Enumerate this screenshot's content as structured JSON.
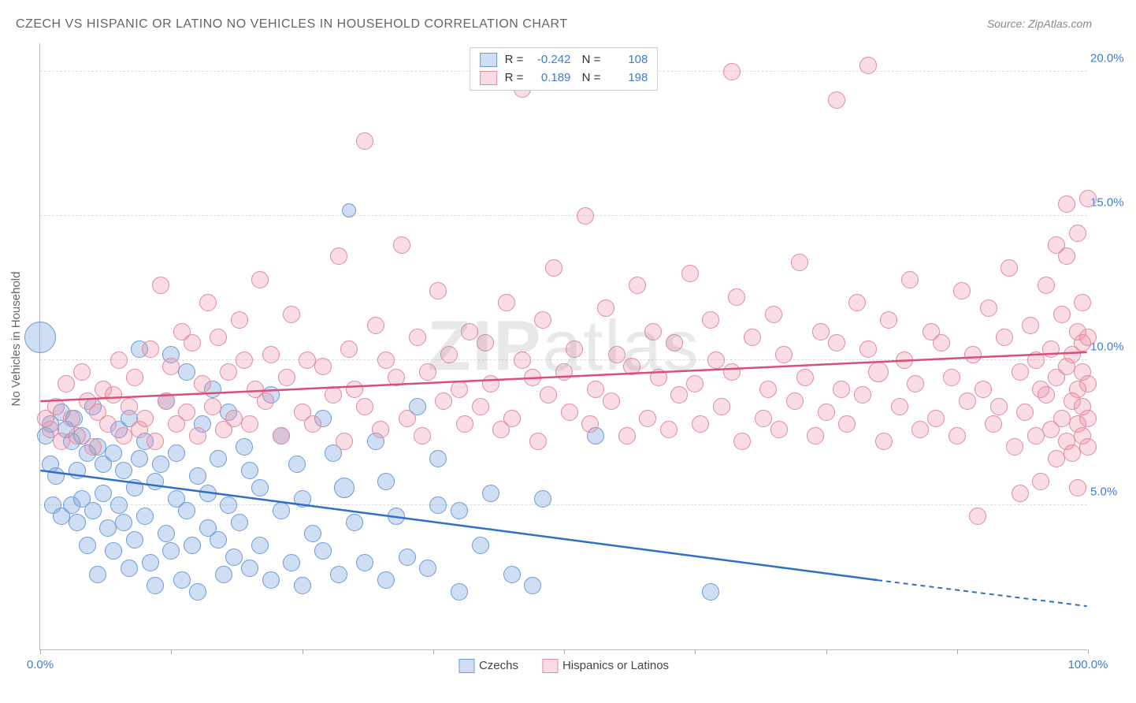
{
  "title": "CZECH VS HISPANIC OR LATINO NO VEHICLES IN HOUSEHOLD CORRELATION CHART",
  "source_label": "Source: ZipAtlas.com",
  "ylabel": "No Vehicles in Household",
  "watermark_prefix": "ZIP",
  "watermark_suffix": "atlas",
  "chart": {
    "type": "scatter",
    "background_color": "#ffffff",
    "grid_color": "#dddddd",
    "axis_color": "#bbbbbb",
    "tick_label_color": "#3b7dd8",
    "tick_fontsize": 15,
    "title_fontsize": 16,
    "title_color": "#666666",
    "xlim": [
      0,
      100
    ],
    "ylim": [
      0,
      21
    ],
    "ytick_values": [
      5,
      10,
      15,
      20
    ],
    "ytick_labels": [
      "5.0%",
      "10.0%",
      "15.0%",
      "20.0%"
    ],
    "xtick_values": [
      0,
      12.5,
      25,
      37.5,
      50,
      62.5,
      75,
      87.5,
      100
    ],
    "xtick_labels_shown": {
      "0": "0.0%",
      "100": "100.0%"
    },
    "series": [
      {
        "name": "Czechs",
        "label": "Czechs",
        "fill_color": "rgba(120,160,220,0.35)",
        "stroke_color": "#6a9bd8",
        "trend_color": "#2f6fc4",
        "marker_radius": 11,
        "R": "-0.242",
        "N": "108",
        "trendline": {
          "x1": 0,
          "y1": 6.2,
          "x2": 80,
          "y2": 2.4,
          "dash_x2": 100,
          "dash_y2": 1.5
        },
        "points": [
          [
            0,
            10.8,
            20
          ],
          [
            0.5,
            7.4
          ],
          [
            1,
            6.4
          ],
          [
            1,
            7.8
          ],
          [
            1.2,
            5.0
          ],
          [
            1.5,
            6.0
          ],
          [
            2,
            8.2
          ],
          [
            2,
            4.6
          ],
          [
            2.5,
            7.6
          ],
          [
            3,
            7.2
          ],
          [
            3,
            5.0
          ],
          [
            3.2,
            8.0
          ],
          [
            3.5,
            6.2
          ],
          [
            3.5,
            4.4
          ],
          [
            4,
            5.2
          ],
          [
            4,
            7.4
          ],
          [
            4.5,
            3.6
          ],
          [
            4.5,
            6.8
          ],
          [
            5,
            8.4
          ],
          [
            5,
            4.8
          ],
          [
            5.5,
            7.0
          ],
          [
            5.5,
            2.6
          ],
          [
            6,
            6.4
          ],
          [
            6,
            5.4
          ],
          [
            6.5,
            4.2
          ],
          [
            7,
            6.8
          ],
          [
            7,
            3.4
          ],
          [
            7.5,
            7.6
          ],
          [
            7.5,
            5.0
          ],
          [
            8,
            4.4
          ],
          [
            8,
            6.2
          ],
          [
            8.5,
            2.8
          ],
          [
            8.5,
            8.0
          ],
          [
            9,
            5.6
          ],
          [
            9,
            3.8
          ],
          [
            9.5,
            6.6
          ],
          [
            9.5,
            10.4
          ],
          [
            10,
            4.6
          ],
          [
            10,
            7.2
          ],
          [
            10.5,
            3.0
          ],
          [
            11,
            5.8
          ],
          [
            11,
            2.2
          ],
          [
            11.5,
            6.4
          ],
          [
            12,
            4.0
          ],
          [
            12,
            8.6
          ],
          [
            12.5,
            10.2
          ],
          [
            12.5,
            3.4
          ],
          [
            13,
            5.2
          ],
          [
            13,
            6.8
          ],
          [
            13.5,
            2.4
          ],
          [
            14,
            4.8
          ],
          [
            14,
            9.6
          ],
          [
            14.5,
            3.6
          ],
          [
            15,
            6.0
          ],
          [
            15,
            2.0
          ],
          [
            15.5,
            7.8
          ],
          [
            16,
            4.2
          ],
          [
            16,
            5.4
          ],
          [
            16.5,
            9.0
          ],
          [
            17,
            3.8
          ],
          [
            17,
            6.6
          ],
          [
            17.5,
            2.6
          ],
          [
            18,
            5.0
          ],
          [
            18,
            8.2
          ],
          [
            18.5,
            3.2
          ],
          [
            19,
            4.4
          ],
          [
            19.5,
            7.0
          ],
          [
            20,
            2.8
          ],
          [
            20,
            6.2
          ],
          [
            21,
            3.6
          ],
          [
            21,
            5.6
          ],
          [
            22,
            8.8
          ],
          [
            22,
            2.4
          ],
          [
            23,
            4.8
          ],
          [
            23,
            7.4
          ],
          [
            24,
            3.0
          ],
          [
            24.5,
            6.4
          ],
          [
            25,
            2.2
          ],
          [
            25,
            5.2
          ],
          [
            26,
            4.0
          ],
          [
            27,
            8.0
          ],
          [
            27,
            3.4
          ],
          [
            28,
            6.8
          ],
          [
            28.5,
            2.6
          ],
          [
            29,
            5.6,
            13
          ],
          [
            29.5,
            15.2,
            9
          ],
          [
            30,
            4.4
          ],
          [
            31,
            3.0
          ],
          [
            32,
            7.2
          ],
          [
            33,
            2.4
          ],
          [
            33,
            5.8
          ],
          [
            34,
            4.6
          ],
          [
            35,
            3.2
          ],
          [
            36,
            8.4
          ],
          [
            37,
            2.8
          ],
          [
            38,
            5.0
          ],
          [
            38,
            6.6
          ],
          [
            40,
            2.0
          ],
          [
            40,
            4.8
          ],
          [
            42,
            3.6
          ],
          [
            43,
            5.4
          ],
          [
            45,
            2.6
          ],
          [
            47,
            2.2
          ],
          [
            48,
            5.2
          ],
          [
            53,
            7.4
          ],
          [
            64,
            2.0
          ]
        ]
      },
      {
        "name": "Hispanics or Latinos",
        "label": "Hispanics or Latinos",
        "fill_color": "rgba(235,140,165,0.30)",
        "stroke_color": "#e08aa0",
        "trend_color": "#d94f78",
        "marker_radius": 11,
        "R": "0.189",
        "N": "198",
        "trendline": {
          "x1": 0,
          "y1": 8.6,
          "x2": 100,
          "y2": 10.3
        },
        "points": [
          [
            0.5,
            8.0
          ],
          [
            1,
            7.6
          ],
          [
            1.5,
            8.4
          ],
          [
            2,
            7.2
          ],
          [
            2.5,
            9.2
          ],
          [
            3,
            8.0
          ],
          [
            3.5,
            7.4
          ],
          [
            4,
            9.6
          ],
          [
            4.5,
            8.6
          ],
          [
            5,
            7.0
          ],
          [
            5.5,
            8.2
          ],
          [
            6,
            9.0
          ],
          [
            6.5,
            7.8
          ],
          [
            7,
            8.8
          ],
          [
            7.5,
            10.0
          ],
          [
            8,
            7.4
          ],
          [
            8.5,
            8.4
          ],
          [
            9,
            9.4
          ],
          [
            9.5,
            7.6
          ],
          [
            10,
            8.0
          ],
          [
            10.5,
            10.4
          ],
          [
            11,
            7.2
          ],
          [
            11.5,
            12.6
          ],
          [
            12,
            8.6
          ],
          [
            12.5,
            9.8
          ],
          [
            13,
            7.8
          ],
          [
            13.5,
            11.0
          ],
          [
            14,
            8.2
          ],
          [
            14.5,
            10.6
          ],
          [
            15,
            7.4
          ],
          [
            15.5,
            9.2
          ],
          [
            16,
            12.0
          ],
          [
            16.5,
            8.4
          ],
          [
            17,
            10.8
          ],
          [
            17.5,
            7.6
          ],
          [
            18,
            9.6
          ],
          [
            18.5,
            8.0
          ],
          [
            19,
            11.4
          ],
          [
            19.5,
            10.0
          ],
          [
            20,
            7.8
          ],
          [
            20.5,
            9.0
          ],
          [
            21,
            12.8
          ],
          [
            21.5,
            8.6
          ],
          [
            22,
            10.2
          ],
          [
            23,
            7.4
          ],
          [
            23.5,
            9.4
          ],
          [
            24,
            11.6
          ],
          [
            25,
            8.2
          ],
          [
            25.5,
            10.0
          ],
          [
            26,
            7.8
          ],
          [
            27,
            9.8
          ],
          [
            28,
            8.8
          ],
          [
            28.5,
            13.6
          ],
          [
            29,
            7.2
          ],
          [
            29.5,
            10.4
          ],
          [
            30,
            9.0
          ],
          [
            31,
            8.4
          ],
          [
            31,
            17.6
          ],
          [
            32,
            11.2
          ],
          [
            32.5,
            7.6
          ],
          [
            33,
            10.0
          ],
          [
            34,
            9.4
          ],
          [
            34.5,
            14.0
          ],
          [
            35,
            8.0
          ],
          [
            36,
            10.8
          ],
          [
            36.5,
            7.4
          ],
          [
            37,
            9.6
          ],
          [
            38,
            12.4
          ],
          [
            38.5,
            8.6
          ],
          [
            39,
            10.2
          ],
          [
            40,
            9.0
          ],
          [
            40.5,
            7.8
          ],
          [
            41,
            11.0
          ],
          [
            42,
            8.4
          ],
          [
            42.5,
            10.6
          ],
          [
            43,
            9.2
          ],
          [
            44,
            7.6
          ],
          [
            44.5,
            12.0
          ],
          [
            45,
            8.0
          ],
          [
            46,
            10.0
          ],
          [
            46,
            19.4
          ],
          [
            47,
            9.4
          ],
          [
            47.5,
            7.2
          ],
          [
            48,
            11.4
          ],
          [
            48.5,
            8.8
          ],
          [
            49,
            13.2
          ],
          [
            49,
            20.2
          ],
          [
            50,
            9.6
          ],
          [
            50.5,
            8.2
          ],
          [
            51,
            10.4
          ],
          [
            52,
            15.0
          ],
          [
            52.5,
            7.8
          ],
          [
            53,
            9.0
          ],
          [
            54,
            11.8
          ],
          [
            54.5,
            8.6
          ],
          [
            55,
            10.2
          ],
          [
            56,
            7.4
          ],
          [
            56.5,
            9.8
          ],
          [
            57,
            12.6
          ],
          [
            58,
            8.0
          ],
          [
            58.5,
            11.0
          ],
          [
            59,
            9.4
          ],
          [
            60,
            7.6
          ],
          [
            60.5,
            10.6
          ],
          [
            61,
            8.8
          ],
          [
            62,
            13.0
          ],
          [
            62.5,
            9.2
          ],
          [
            63,
            7.8
          ],
          [
            64,
            11.4
          ],
          [
            64.5,
            10.0
          ],
          [
            65,
            8.4
          ],
          [
            66,
            9.6
          ],
          [
            66,
            20.0
          ],
          [
            66.5,
            12.2
          ],
          [
            67,
            7.2
          ],
          [
            68,
            10.8
          ],
          [
            69,
            8.0
          ],
          [
            69.5,
            9.0
          ],
          [
            70,
            11.6
          ],
          [
            70.5,
            7.6
          ],
          [
            71,
            10.2
          ],
          [
            72,
            8.6
          ],
          [
            72.5,
            13.4
          ],
          [
            73,
            9.4
          ],
          [
            74,
            7.4
          ],
          [
            74.5,
            11.0
          ],
          [
            75,
            8.2
          ],
          [
            76,
            10.6
          ],
          [
            76,
            19.0
          ],
          [
            76.5,
            9.0
          ],
          [
            77,
            7.8
          ],
          [
            78,
            12.0
          ],
          [
            78.5,
            8.8
          ],
          [
            79,
            10.4
          ],
          [
            79,
            20.2
          ],
          [
            80,
            9.6,
            13
          ],
          [
            80.5,
            7.2
          ],
          [
            81,
            11.4
          ],
          [
            82,
            8.4
          ],
          [
            82.5,
            10.0
          ],
          [
            83,
            12.8
          ],
          [
            83.5,
            9.2
          ],
          [
            84,
            7.6
          ],
          [
            85,
            11.0
          ],
          [
            85.5,
            8.0
          ],
          [
            86,
            10.6
          ],
          [
            87,
            9.4
          ],
          [
            87.5,
            7.4
          ],
          [
            88,
            12.4
          ],
          [
            88.5,
            8.6
          ],
          [
            89,
            10.2
          ],
          [
            89.5,
            4.6
          ],
          [
            90,
            9.0
          ],
          [
            90.5,
            11.8
          ],
          [
            91,
            7.8
          ],
          [
            91.5,
            8.4
          ],
          [
            92,
            10.8
          ],
          [
            92.5,
            13.2
          ],
          [
            93,
            7.0
          ],
          [
            93.5,
            9.6
          ],
          [
            93.5,
            5.4
          ],
          [
            94,
            8.2
          ],
          [
            94.5,
            11.2
          ],
          [
            95,
            7.4
          ],
          [
            95,
            10.0
          ],
          [
            95.5,
            9.0
          ],
          [
            95.5,
            5.8
          ],
          [
            96,
            8.8
          ],
          [
            96,
            12.6
          ],
          [
            96.5,
            7.6
          ],
          [
            96.5,
            10.4
          ],
          [
            97,
            9.4
          ],
          [
            97,
            6.6
          ],
          [
            97,
            14.0
          ],
          [
            97.5,
            8.0
          ],
          [
            97.5,
            11.6
          ],
          [
            98,
            7.2
          ],
          [
            98,
            9.8
          ],
          [
            98,
            13.6
          ],
          [
            98,
            15.4
          ],
          [
            98.5,
            8.6
          ],
          [
            98.5,
            10.2
          ],
          [
            98.5,
            6.8
          ],
          [
            99,
            7.8
          ],
          [
            99,
            9.0
          ],
          [
            99,
            11.0
          ],
          [
            99,
            5.6
          ],
          [
            99,
            14.4
          ],
          [
            99.5,
            8.4
          ],
          [
            99.5,
            10.6
          ],
          [
            99.5,
            7.4
          ],
          [
            99.5,
            12.0
          ],
          [
            99.5,
            9.6
          ],
          [
            100,
            8.0
          ],
          [
            100,
            10.8
          ],
          [
            100,
            7.0
          ],
          [
            100,
            9.2
          ],
          [
            100,
            15.6
          ]
        ]
      }
    ]
  }
}
